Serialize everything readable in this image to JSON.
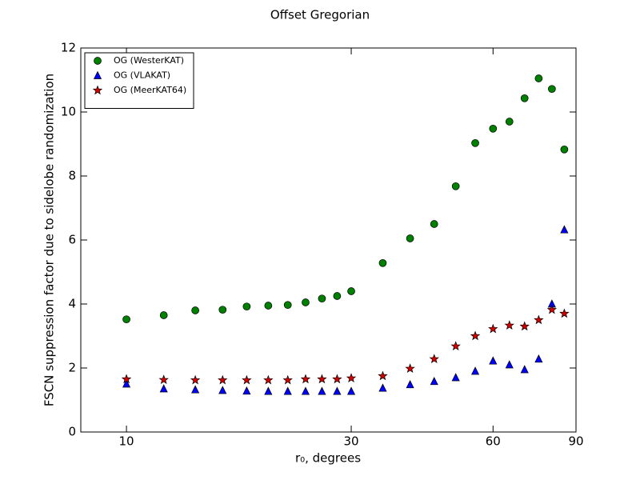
{
  "chart_data": {
    "type": "scatter",
    "title": "Offset Gregorian",
    "xlabel": "r₀, degrees",
    "ylabel": "FSCN suppression factor due to sidelobe randomization",
    "x": [
      10,
      12,
      14,
      16,
      18,
      20,
      22,
      24,
      26,
      28,
      30,
      35,
      40,
      45,
      50,
      55,
      60,
      65,
      70,
      75,
      80,
      85
    ],
    "series": [
      {
        "name": "OG (WesterKAT)",
        "color": "#008000",
        "marker": "circle",
        "values": [
          3.52,
          3.65,
          3.8,
          3.82,
          3.92,
          3.95,
          3.97,
          4.05,
          4.17,
          4.25,
          4.4,
          5.28,
          6.05,
          6.5,
          7.68,
          9.03,
          9.48,
          9.7,
          10.43,
          11.05,
          10.72,
          8.83
        ]
      },
      {
        "name": "OG (VLAKAT)",
        "color": "#0000ff",
        "marker": "triangle",
        "values": [
          1.5,
          1.35,
          1.32,
          1.3,
          1.28,
          1.27,
          1.27,
          1.27,
          1.27,
          1.27,
          1.27,
          1.37,
          1.48,
          1.58,
          1.7,
          1.9,
          2.22,
          2.1,
          1.95,
          2.28,
          4.0,
          6.32
        ]
      },
      {
        "name": "OG (MeerKAT64)",
        "color": "#d40000",
        "marker": "star",
        "values": [
          1.65,
          1.63,
          1.62,
          1.62,
          1.62,
          1.62,
          1.62,
          1.65,
          1.65,
          1.65,
          1.68,
          1.75,
          1.98,
          2.28,
          2.68,
          3.0,
          3.22,
          3.33,
          3.3,
          3.5,
          3.82,
          3.7
        ]
      }
    ],
    "xlim": [
      8,
      90
    ],
    "xticks": [
      10,
      30,
      60,
      90
    ],
    "xscale": "log",
    "ylim": [
      0,
      12
    ],
    "yticks": [
      0,
      2,
      4,
      6,
      8,
      10,
      12
    ],
    "legend": "upper left"
  }
}
